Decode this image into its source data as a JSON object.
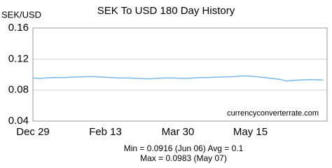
{
  "chart_data": {
    "type": "line",
    "title": "SEK To USD 180 Day History",
    "y_label": "SEK/USD",
    "categories": [
      "Dec 29",
      null,
      null,
      null,
      null,
      null,
      null,
      null,
      null,
      null,
      "Feb 13",
      null,
      null,
      null,
      null,
      null,
      null,
      null,
      null,
      null,
      "Mar 30",
      null,
      null,
      null,
      null,
      null,
      null,
      null,
      null,
      null,
      "May 15",
      null,
      null,
      null,
      null,
      null,
      null,
      null,
      null,
      null,
      null
    ],
    "series": [
      {
        "name": "SEK/USD",
        "color": "#7ab8e8",
        "values": [
          0.0955,
          0.095,
          0.0958,
          0.0962,
          0.096,
          0.0965,
          0.0968,
          0.0972,
          0.0975,
          0.097,
          0.0965,
          0.096,
          0.0955,
          0.0958,
          0.0952,
          0.0948,
          0.0945,
          0.095,
          0.0955,
          0.0958,
          0.0952,
          0.095,
          0.0955,
          0.096,
          0.0962,
          0.0965,
          0.0968,
          0.097,
          0.0975,
          0.0983,
          0.0978,
          0.097,
          0.096,
          0.095,
          0.094,
          0.0916,
          0.0925,
          0.093,
          0.0935,
          0.0932,
          0.093
        ]
      }
    ],
    "ylim": [
      0.04,
      0.16
    ],
    "yticks": [
      0.04,
      0.08,
      0.12,
      0.16
    ],
    "grid": true,
    "annotations": [
      "currencyconverterrate.com",
      "Min = 0.0916 (Jun 06) Avg = 0.1",
      "Max = 0.0983 (May 07)"
    ]
  }
}
